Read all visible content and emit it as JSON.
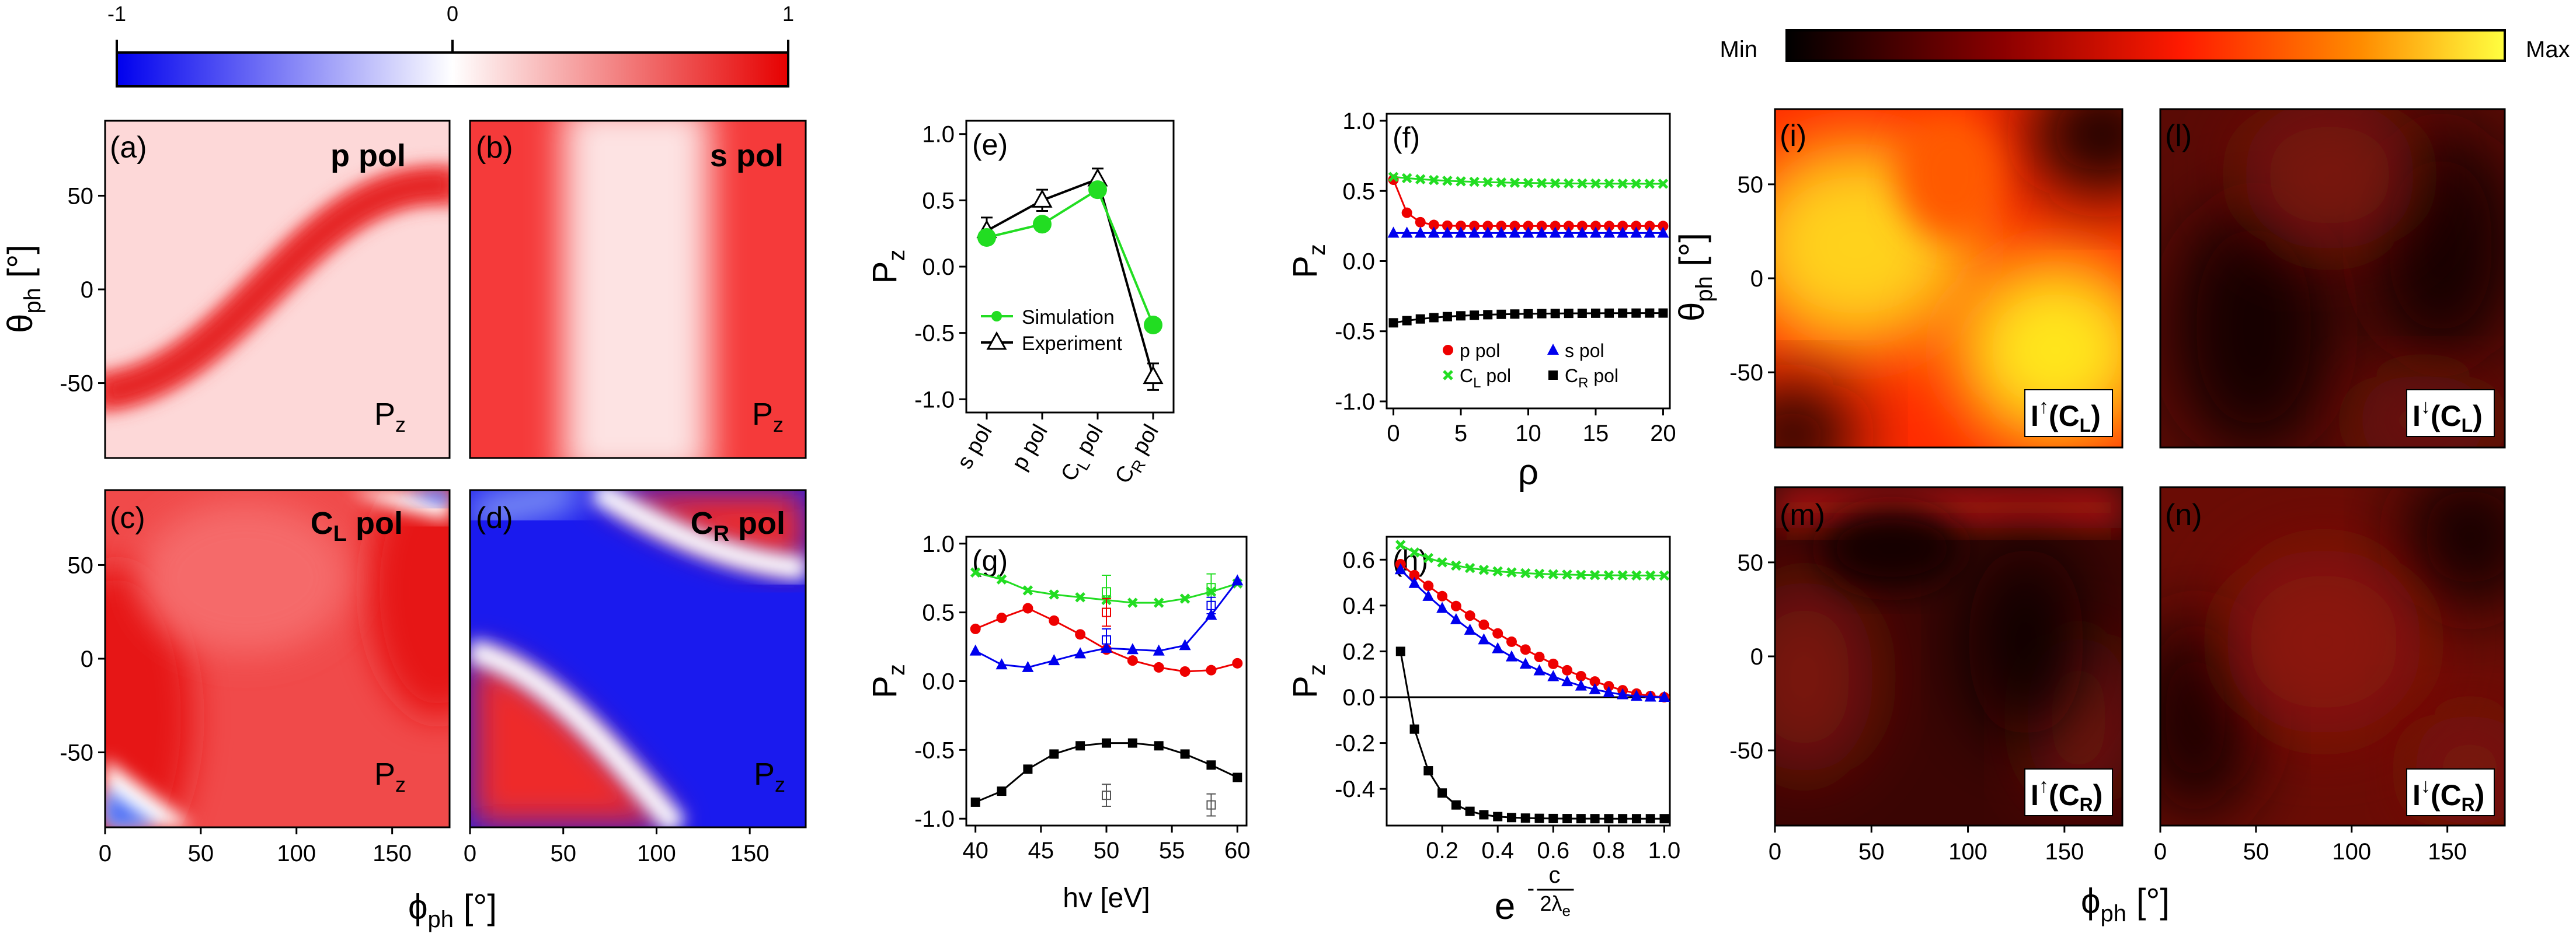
{
  "figure": {
    "colorbar_diverging": {
      "ticks": [
        "-1",
        "0",
        "1"
      ],
      "colors": [
        "#0000ee",
        "#ffffff",
        "#e60000"
      ]
    },
    "colorbar_intensity": {
      "min_label": "Min",
      "max_label": "Max",
      "colors": [
        "#000000",
        "#8b0000",
        "#ff1a00",
        "#ff8c00",
        "#ffff40"
      ]
    }
  },
  "chart_data": [
    {
      "id": "a",
      "type": "heatmap",
      "panel_label": "(a)",
      "title": "p pol",
      "quantity": "P",
      "quantity_sub": "z",
      "xlim": [
        0,
        180
      ],
      "ylim": [
        -90,
        90
      ],
      "clim": [
        -1,
        1
      ],
      "xticks": [
        0,
        50,
        100,
        150
      ],
      "yticks": [
        -50,
        0,
        50
      ],
      "ylabel_main": "θ",
      "ylabel_sub": "ph",
      "ylabel_unit": " [°]"
    },
    {
      "id": "b",
      "type": "heatmap",
      "panel_label": "(b)",
      "title": "s pol",
      "quantity": "P",
      "quantity_sub": "z",
      "xlim": [
        0,
        180
      ],
      "ylim": [
        -90,
        90
      ],
      "clim": [
        -1,
        1
      ]
    },
    {
      "id": "c",
      "type": "heatmap",
      "panel_label": "(c)",
      "title_main": "C",
      "title_sub": "L",
      "title_rest": " pol",
      "quantity": "P",
      "quantity_sub": "z",
      "xlim": [
        0,
        180
      ],
      "ylim": [
        -90,
        90
      ],
      "clim": [
        -1,
        1
      ],
      "xticks": [
        0,
        50,
        100,
        150
      ],
      "yticks": [
        -50,
        0,
        50
      ],
      "xlabel_main": "ϕ",
      "xlabel_sub": "ph",
      "xlabel_unit": " [°]"
    },
    {
      "id": "d",
      "type": "heatmap",
      "panel_label": "(d)",
      "title_main": "C",
      "title_sub": "R",
      "title_rest": " pol",
      "quantity": "P",
      "quantity_sub": "z",
      "xlim": [
        0,
        180
      ],
      "ylim": [
        -90,
        90
      ],
      "clim": [
        -1,
        1
      ],
      "xticks": [
        0,
        50,
        100,
        150
      ]
    },
    {
      "id": "e",
      "type": "line",
      "panel_label": "(e)",
      "categories": [
        "s pol",
        "p pol",
        "C|L| pol",
        "C|R| pol"
      ],
      "ylim": [
        -1.1,
        1.1
      ],
      "yticks": [
        "-1.0",
        "-0.5",
        "0.0",
        "0.5",
        "1.0"
      ],
      "ylabel_main": "P",
      "ylabel_sub": "z",
      "series": [
        {
          "name": "Simulation",
          "color": "#22dd22",
          "marker": "circle",
          "values": [
            0.22,
            0.32,
            0.58,
            -0.44
          ]
        },
        {
          "name": "Experiment",
          "color": "#000000",
          "marker": "open-triangle",
          "values": [
            0.27,
            0.5,
            0.66,
            -0.83
          ],
          "errors": [
            0.1,
            0.08,
            0.08,
            0.1
          ]
        }
      ]
    },
    {
      "id": "f",
      "type": "scatter",
      "panel_label": "(f)",
      "xlim": [
        -0.5,
        20.5
      ],
      "xticks": [
        "0",
        "5",
        "10",
        "15",
        "20"
      ],
      "ylim": [
        -1.05,
        1.05
      ],
      "yticks": [
        "-1.0",
        "-0.5",
        "0.0",
        "0.5",
        "1.0"
      ],
      "xlabel": "ρ",
      "ylabel_main": "P",
      "ylabel_sub": "z",
      "legend": [
        "p pol",
        "s pol",
        "C|L| pol",
        "C|R| pol"
      ],
      "series": [
        {
          "name": "p pol",
          "color": "#ee0000",
          "marker": "circle",
          "start": 0.58,
          "end": 0.25,
          "tau": 0.8
        },
        {
          "name": "s pol",
          "color": "#0000ee",
          "marker": "triangle",
          "start": 0.2,
          "end": 0.2,
          "tau": 1
        },
        {
          "name": "C_L pol",
          "color": "#22dd22",
          "marker": "cross",
          "start": 0.6,
          "end": 0.55,
          "tau": 5
        },
        {
          "name": "C_R pol",
          "color": "#000000",
          "marker": "square",
          "start": -0.44,
          "end": -0.37,
          "tau": 4
        }
      ]
    },
    {
      "id": "g",
      "type": "line",
      "panel_label": "(g)",
      "x": [
        40,
        42,
        44,
        46,
        48,
        50,
        52,
        54,
        56,
        58,
        60
      ],
      "xlim": [
        39.3,
        60.7
      ],
      "xticks": [
        "40",
        "45",
        "50",
        "55",
        "60"
      ],
      "ylim": [
        -1.05,
        1.05
      ],
      "yticks": [
        "-1.0",
        "-0.5",
        "0.0",
        "0.5",
        "1.0"
      ],
      "xlabel": "hv [eV]",
      "ylabel_main": "P",
      "ylabel_sub": "z",
      "series": [
        {
          "name": "C_L pol",
          "color": "#22dd22",
          "marker": "cross",
          "values": [
            0.79,
            0.74,
            0.66,
            0.63,
            0.61,
            0.59,
            0.57,
            0.57,
            0.6,
            0.65,
            0.71
          ]
        },
        {
          "name": "p pol",
          "color": "#ee0000",
          "marker": "circle",
          "values": [
            0.38,
            0.46,
            0.53,
            0.44,
            0.34,
            0.23,
            0.15,
            0.1,
            0.07,
            0.08,
            0.13
          ]
        },
        {
          "name": "s pol",
          "color": "#0000ee",
          "marker": "triangle",
          "values": [
            0.22,
            0.12,
            0.1,
            0.15,
            0.2,
            0.24,
            0.23,
            0.22,
            0.26,
            0.48,
            0.73
          ]
        },
        {
          "name": "C_R pol",
          "color": "#000000",
          "marker": "square",
          "values": [
            -0.88,
            -0.8,
            -0.64,
            -0.53,
            -0.47,
            -0.45,
            -0.45,
            -0.47,
            -0.53,
            -0.61,
            -0.7
          ]
        }
      ],
      "experiment": [
        {
          "x": 50,
          "y": 0.65,
          "err": 0.12,
          "color": "#22dd22"
        },
        {
          "x": 50,
          "y": 0.5,
          "err": 0.1,
          "color": "#ee0000"
        },
        {
          "x": 50,
          "y": 0.3,
          "err": 0.08,
          "color": "#0000ee"
        },
        {
          "x": 50,
          "y": -0.83,
          "err": 0.08,
          "color": "#555555"
        },
        {
          "x": 58,
          "y": 0.68,
          "err": 0.1,
          "color": "#22dd22"
        },
        {
          "x": 58,
          "y": 0.55,
          "err": 0.06,
          "color": "#0000ee"
        },
        {
          "x": 58,
          "y": -0.9,
          "err": 0.08,
          "color": "#555555"
        }
      ]
    },
    {
      "id": "h",
      "type": "line",
      "panel_label": "(h)",
      "xlim": [
        0,
        1.02
      ],
      "xticks": [
        "0.2",
        "0.4",
        "0.6",
        "0.8",
        "1.0"
      ],
      "ylim": [
        -0.56,
        0.7
      ],
      "yticks": [
        "-0.4",
        "-0.2",
        "0.0",
        "0.2",
        "0.4",
        "0.6"
      ],
      "xlabel_base": "e",
      "xlabel_exp_num": "c",
      "xlabel_exp_den": "2λ",
      "xlabel_exp_den_sub": "e",
      "ylabel_main": "P",
      "ylabel_sub": "z",
      "zero_line": true,
      "series": [
        {
          "name": "C_L pol",
          "color": "#22dd22",
          "marker": "cross",
          "kind": "cl"
        },
        {
          "name": "p pol",
          "color": "#ee0000",
          "marker": "circle",
          "kind": "p"
        },
        {
          "name": "s pol",
          "color": "#0000ee",
          "marker": "triangle",
          "kind": "s"
        },
        {
          "name": "C_R pol",
          "color": "#000000",
          "marker": "square",
          "kind": "cr"
        }
      ]
    },
    {
      "id": "i",
      "type": "heatmap",
      "panel_label": "(i)",
      "label_main": "I",
      "label_arrow": "↑",
      "label_pol": "C",
      "label_pol_sub": "L",
      "xlim": [
        0,
        180
      ],
      "ylim": [
        -90,
        90
      ],
      "yticks": [
        -50,
        0,
        50
      ],
      "ylabel_main": "θ",
      "ylabel_sub": "ph",
      "ylabel_unit": " [°]"
    },
    {
      "id": "l",
      "type": "heatmap",
      "panel_label": "(l)",
      "label_main": "I",
      "label_arrow": "↓",
      "label_pol": "C",
      "label_pol_sub": "L",
      "xlim": [
        0,
        180
      ],
      "ylim": [
        -90,
        90
      ]
    },
    {
      "id": "m",
      "type": "heatmap",
      "panel_label": "(m)",
      "label_main": "I",
      "label_arrow": "↑",
      "label_pol": "C",
      "label_pol_sub": "R",
      "xlim": [
        0,
        180
      ],
      "ylim": [
        -90,
        90
      ],
      "xticks": [
        0,
        50,
        100,
        150
      ],
      "yticks": [
        -50,
        0,
        50
      ],
      "xlabel_main": "ϕ",
      "xlabel_sub": "ph",
      "xlabel_unit": " [°]"
    },
    {
      "id": "n",
      "type": "heatmap",
      "panel_label": "(n)",
      "label_main": "I",
      "label_arrow": "↓",
      "label_pol": "C",
      "label_pol_sub": "R",
      "xlim": [
        0,
        180
      ],
      "ylim": [
        -90,
        90
      ],
      "xticks": [
        0,
        50,
        100,
        150
      ]
    }
  ]
}
